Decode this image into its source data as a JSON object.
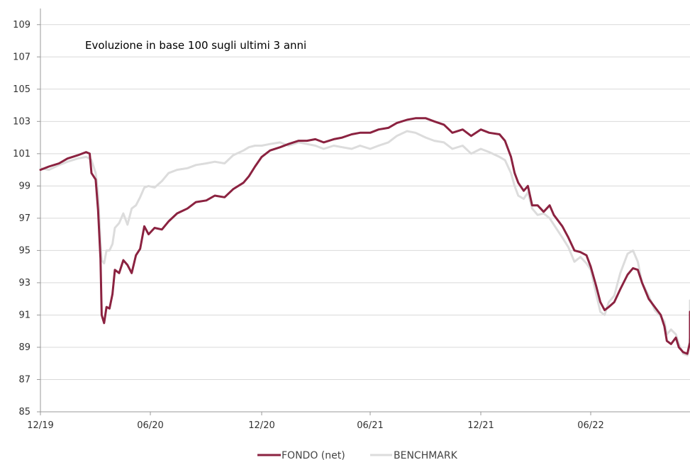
{
  "chart_data": {
    "type": "line",
    "title": "Evoluzione in base 100 sugli ultimi 3 anni",
    "xlabel": "",
    "ylabel": "",
    "ylim": [
      85,
      110
    ],
    "yticks": [
      85,
      87,
      89,
      91,
      93,
      95,
      97,
      99,
      101,
      103,
      105,
      107,
      109
    ],
    "xticks": [
      "12/19",
      "06/20",
      "12/20",
      "06/21",
      "12/21",
      "06/22"
    ],
    "x_range": [
      "2019-12",
      "2022-11"
    ],
    "grid": "horizontal",
    "legend_position": "bottom-center",
    "series": [
      {
        "name": "FONDO (net)",
        "color": "#8b2240",
        "points": [
          [
            "2019-12-01",
            100.0
          ],
          [
            "2019-12-15",
            100.2
          ],
          [
            "2020-01-01",
            100.4
          ],
          [
            "2020-01-15",
            100.7
          ],
          [
            "2020-02-01",
            100.9
          ],
          [
            "2020-02-15",
            101.1
          ],
          [
            "2020-02-21",
            101.0
          ],
          [
            "2020-02-24",
            99.8
          ],
          [
            "2020-03-02",
            99.4
          ],
          [
            "2020-03-06",
            97.5
          ],
          [
            "2020-03-10",
            94.5
          ],
          [
            "2020-03-12",
            91.0
          ],
          [
            "2020-03-16",
            90.5
          ],
          [
            "2020-03-20",
            91.5
          ],
          [
            "2020-03-25",
            91.4
          ],
          [
            "2020-03-30",
            92.3
          ],
          [
            "2020-04-03",
            93.8
          ],
          [
            "2020-04-10",
            93.6
          ],
          [
            "2020-04-17",
            94.4
          ],
          [
            "2020-04-24",
            94.1
          ],
          [
            "2020-05-01",
            93.6
          ],
          [
            "2020-05-08",
            94.7
          ],
          [
            "2020-05-15",
            95.1
          ],
          [
            "2020-05-22",
            96.5
          ],
          [
            "2020-05-29",
            96.0
          ],
          [
            "2020-06-08",
            96.4
          ],
          [
            "2020-06-20",
            96.3
          ],
          [
            "2020-07-01",
            96.8
          ],
          [
            "2020-07-15",
            97.3
          ],
          [
            "2020-08-01",
            97.6
          ],
          [
            "2020-08-15",
            98.0
          ],
          [
            "2020-09-01",
            98.1
          ],
          [
            "2020-09-15",
            98.4
          ],
          [
            "2020-10-01",
            98.3
          ],
          [
            "2020-10-15",
            98.8
          ],
          [
            "2020-11-01",
            99.2
          ],
          [
            "2020-11-10",
            99.6
          ],
          [
            "2020-11-20",
            100.2
          ],
          [
            "2020-12-01",
            100.8
          ],
          [
            "2020-12-15",
            101.2
          ],
          [
            "2021-01-01",
            101.4
          ],
          [
            "2021-01-15",
            101.6
          ],
          [
            "2021-02-01",
            101.8
          ],
          [
            "2021-02-15",
            101.8
          ],
          [
            "2021-03-01",
            101.9
          ],
          [
            "2021-03-15",
            101.7
          ],
          [
            "2021-04-01",
            101.9
          ],
          [
            "2021-04-15",
            102.0
          ],
          [
            "2021-05-01",
            102.2
          ],
          [
            "2021-05-15",
            102.3
          ],
          [
            "2021-06-01",
            102.3
          ],
          [
            "2021-06-15",
            102.5
          ],
          [
            "2021-07-01",
            102.6
          ],
          [
            "2021-07-15",
            102.9
          ],
          [
            "2021-08-01",
            103.1
          ],
          [
            "2021-08-15",
            103.2
          ],
          [
            "2021-09-01",
            103.2
          ],
          [
            "2021-09-15",
            103.0
          ],
          [
            "2021-10-01",
            102.8
          ],
          [
            "2021-10-15",
            102.3
          ],
          [
            "2021-11-01",
            102.5
          ],
          [
            "2021-11-15",
            102.1
          ],
          [
            "2021-12-01",
            102.5
          ],
          [
            "2021-12-15",
            102.3
          ],
          [
            "2022-01-01",
            102.2
          ],
          [
            "2022-01-10",
            101.8
          ],
          [
            "2022-01-20",
            100.8
          ],
          [
            "2022-01-26",
            99.8
          ],
          [
            "2022-02-01",
            99.2
          ],
          [
            "2022-02-10",
            98.7
          ],
          [
            "2022-02-17",
            99.0
          ],
          [
            "2022-02-24",
            97.8
          ],
          [
            "2022-03-05",
            97.8
          ],
          [
            "2022-03-15",
            97.4
          ],
          [
            "2022-03-25",
            97.8
          ],
          [
            "2022-04-01",
            97.2
          ],
          [
            "2022-04-15",
            96.5
          ],
          [
            "2022-04-25",
            95.8
          ],
          [
            "2022-05-05",
            95.0
          ],
          [
            "2022-05-15",
            94.9
          ],
          [
            "2022-05-25",
            94.7
          ],
          [
            "2022-06-01",
            94.0
          ],
          [
            "2022-06-10",
            92.8
          ],
          [
            "2022-06-17",
            91.8
          ],
          [
            "2022-06-24",
            91.3
          ],
          [
            "2022-07-01",
            91.5
          ],
          [
            "2022-07-10",
            91.8
          ],
          [
            "2022-07-20",
            92.6
          ],
          [
            "2022-08-01",
            93.5
          ],
          [
            "2022-08-10",
            93.9
          ],
          [
            "2022-08-18",
            93.8
          ],
          [
            "2022-08-25",
            93.0
          ],
          [
            "2022-09-05",
            92.0
          ],
          [
            "2022-09-15",
            91.5
          ],
          [
            "2022-09-25",
            91.0
          ],
          [
            "2022-10-01",
            90.3
          ],
          [
            "2022-10-05",
            89.4
          ],
          [
            "2022-10-12",
            89.2
          ],
          [
            "2022-10-20",
            89.6
          ],
          [
            "2022-10-25",
            89.0
          ],
          [
            "2022-11-01",
            88.7
          ],
          [
            "2022-11-08",
            88.6
          ],
          [
            "2022-11-15",
            89.3
          ],
          [
            "2022-11-25",
            89.1
          ],
          [
            "2022-12-01",
            89.5
          ],
          [
            "2022-12-10",
            90.2
          ],
          [
            "2022-12-20",
            90.6
          ],
          [
            "2022-12-31",
            91.2
          ],
          [
            "2023-01-05",
            91.0
          ]
        ]
      },
      {
        "name": "BENCHMARK",
        "color": "#dcdcdc",
        "points": [
          [
            "2019-12-01",
            100.1
          ],
          [
            "2019-12-15",
            100.0
          ],
          [
            "2020-01-01",
            100.3
          ],
          [
            "2020-01-15",
            100.5
          ],
          [
            "2020-02-01",
            100.7
          ],
          [
            "2020-02-15",
            100.8
          ],
          [
            "2020-02-21",
            100.7
          ],
          [
            "2020-02-24",
            100.6
          ],
          [
            "2020-03-02",
            99.8
          ],
          [
            "2020-03-06",
            98.5
          ],
          [
            "2020-03-10",
            95.5
          ],
          [
            "2020-03-12",
            94.4
          ],
          [
            "2020-03-16",
            94.2
          ],
          [
            "2020-03-20",
            95.0
          ],
          [
            "2020-03-25",
            95.0
          ],
          [
            "2020-03-30",
            95.4
          ],
          [
            "2020-04-03",
            96.4
          ],
          [
            "2020-04-10",
            96.7
          ],
          [
            "2020-04-17",
            97.3
          ],
          [
            "2020-04-24",
            96.6
          ],
          [
            "2020-05-01",
            97.6
          ],
          [
            "2020-05-08",
            97.8
          ],
          [
            "2020-05-15",
            98.3
          ],
          [
            "2020-05-22",
            98.9
          ],
          [
            "2020-05-29",
            99.0
          ],
          [
            "2020-06-08",
            98.9
          ],
          [
            "2020-06-20",
            99.3
          ],
          [
            "2020-07-01",
            99.8
          ],
          [
            "2020-07-15",
            100.0
          ],
          [
            "2020-08-01",
            100.1
          ],
          [
            "2020-08-15",
            100.3
          ],
          [
            "2020-09-01",
            100.4
          ],
          [
            "2020-09-15",
            100.5
          ],
          [
            "2020-10-01",
            100.4
          ],
          [
            "2020-10-15",
            100.9
          ],
          [
            "2020-11-01",
            101.2
          ],
          [
            "2020-11-10",
            101.4
          ],
          [
            "2020-11-20",
            101.5
          ],
          [
            "2020-12-01",
            101.5
          ],
          [
            "2020-12-15",
            101.6
          ],
          [
            "2021-01-01",
            101.7
          ],
          [
            "2021-01-15",
            101.5
          ],
          [
            "2021-02-01",
            101.7
          ],
          [
            "2021-02-15",
            101.6
          ],
          [
            "2021-03-01",
            101.5
          ],
          [
            "2021-03-15",
            101.3
          ],
          [
            "2021-04-01",
            101.5
          ],
          [
            "2021-04-15",
            101.4
          ],
          [
            "2021-05-01",
            101.3
          ],
          [
            "2021-05-15",
            101.5
          ],
          [
            "2021-06-01",
            101.3
          ],
          [
            "2021-06-15",
            101.5
          ],
          [
            "2021-07-01",
            101.7
          ],
          [
            "2021-07-15",
            102.1
          ],
          [
            "2021-08-01",
            102.4
          ],
          [
            "2021-08-15",
            102.3
          ],
          [
            "2021-09-01",
            102.0
          ],
          [
            "2021-09-15",
            101.8
          ],
          [
            "2021-10-01",
            101.7
          ],
          [
            "2021-10-15",
            101.3
          ],
          [
            "2021-11-01",
            101.5
          ],
          [
            "2021-11-15",
            101.0
          ],
          [
            "2021-12-01",
            101.3
          ],
          [
            "2021-12-15",
            101.1
          ],
          [
            "2022-01-01",
            100.8
          ],
          [
            "2022-01-10",
            100.6
          ],
          [
            "2022-01-20",
            99.8
          ],
          [
            "2022-01-26",
            99.0
          ],
          [
            "2022-02-01",
            98.4
          ],
          [
            "2022-02-10",
            98.2
          ],
          [
            "2022-02-17",
            98.6
          ],
          [
            "2022-02-24",
            97.6
          ],
          [
            "2022-03-05",
            97.2
          ],
          [
            "2022-03-15",
            97.3
          ],
          [
            "2022-03-25",
            97.0
          ],
          [
            "2022-04-01",
            96.6
          ],
          [
            "2022-04-15",
            95.8
          ],
          [
            "2022-04-25",
            95.2
          ],
          [
            "2022-05-05",
            94.3
          ],
          [
            "2022-05-15",
            94.6
          ],
          [
            "2022-05-25",
            94.2
          ],
          [
            "2022-06-01",
            93.8
          ],
          [
            "2022-06-10",
            92.3
          ],
          [
            "2022-06-17",
            91.2
          ],
          [
            "2022-06-24",
            91.0
          ],
          [
            "2022-07-01",
            91.8
          ],
          [
            "2022-07-10",
            92.2
          ],
          [
            "2022-07-20",
            93.6
          ],
          [
            "2022-08-01",
            94.8
          ],
          [
            "2022-08-10",
            95.0
          ],
          [
            "2022-08-18",
            94.3
          ],
          [
            "2022-08-25",
            93.0
          ],
          [
            "2022-09-05",
            92.2
          ],
          [
            "2022-09-15",
            91.3
          ],
          [
            "2022-09-25",
            90.9
          ],
          [
            "2022-10-01",
            90.6
          ],
          [
            "2022-10-05",
            89.8
          ],
          [
            "2022-10-12",
            90.1
          ],
          [
            "2022-10-20",
            89.8
          ],
          [
            "2022-10-25",
            89.2
          ],
          [
            "2022-11-01",
            88.6
          ],
          [
            "2022-11-08",
            88.5
          ],
          [
            "2022-11-15",
            89.6
          ],
          [
            "2022-11-25",
            89.3
          ],
          [
            "2022-12-01",
            89.9
          ],
          [
            "2022-12-10",
            90.8
          ],
          [
            "2022-12-20",
            91.3
          ],
          [
            "2022-12-31",
            91.9
          ],
          [
            "2023-01-05",
            91.7
          ]
        ]
      }
    ]
  }
}
